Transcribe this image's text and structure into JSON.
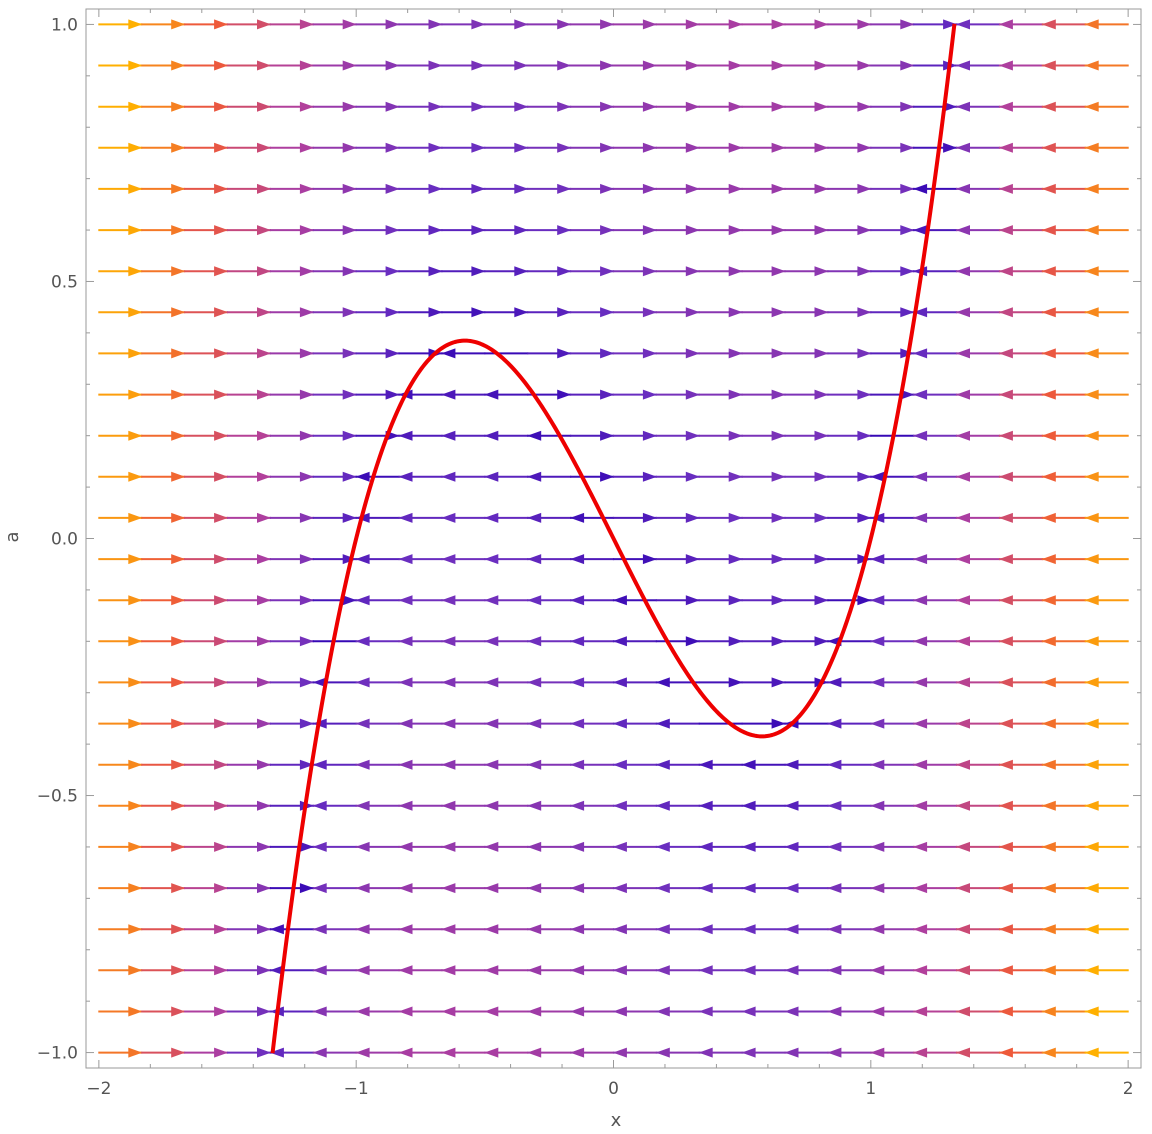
{
  "chart_data": {
    "type": "vector-field",
    "title": "",
    "xlabel": "x",
    "ylabel": "a",
    "xlim": [
      -2.05,
      2.05
    ],
    "ylim": [
      -1.03,
      1.03
    ],
    "x_ticks": [
      -2,
      -1,
      0,
      1,
      2
    ],
    "x_tick_labels": [
      "−2",
      "−1",
      "0",
      "1",
      "2"
    ],
    "y_ticks": [
      -1.0,
      -0.5,
      0.0,
      0.5,
      1.0
    ],
    "y_tick_labels": [
      "−1.0",
      "−0.5",
      "0.0",
      "0.5",
      "1.0"
    ],
    "grid": false,
    "vector_field": {
      "equation": "dx/dt = a + x - x^3, da/dt = 0",
      "x_range": [
        -2.0,
        2.0
      ],
      "a_range": [
        -1.0,
        1.0
      ],
      "columns": 24,
      "rows": 26,
      "colormap": [
        "#2b00b3",
        "#6a2ec0",
        "#b03f9e",
        "#ee5a3a",
        "#ffb000"
      ]
    },
    "series": [
      {
        "type": "line",
        "equation": "a = x^3 - x",
        "x_range": [
          -1.325,
          1.325
        ],
        "color": "#ee0000"
      }
    ]
  }
}
